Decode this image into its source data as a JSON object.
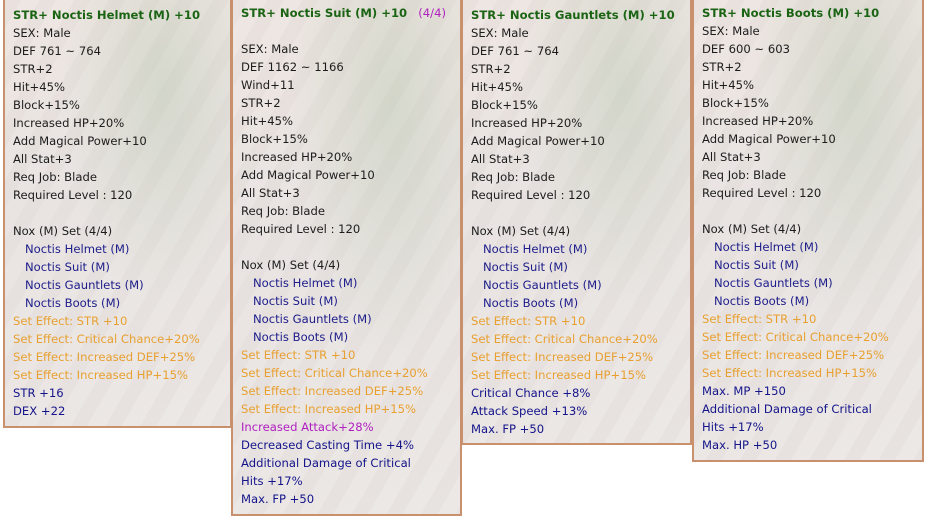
{
  "colors": {
    "title": "#1a6414",
    "normal": "#1c1c1c",
    "set_item": "#1c1c8a",
    "set_effect": "#e8a030",
    "bonus": "#14148a",
    "special": "#b020c0"
  },
  "panels": [
    {
      "title": "STR+ Noctis Helmet (M) +10",
      "lines": [
        {
          "text": "SEX: Male",
          "style": "normal"
        },
        {
          "text": "DEF 761 ~ 764",
          "style": "normal"
        },
        {
          "text": "STR+2",
          "style": "normal"
        },
        {
          "text": "Hit+45%",
          "style": "normal"
        },
        {
          "text": "Block+15%",
          "style": "normal"
        },
        {
          "text": "Increased HP+20%",
          "style": "normal"
        },
        {
          "text": "Add Magical Power+10",
          "style": "normal"
        },
        {
          "text": "All Stat+3",
          "style": "normal"
        },
        {
          "text": "Req Job: Blade",
          "style": "normal"
        },
        {
          "text": "Required Level : 120",
          "style": "normal"
        },
        {
          "text": "",
          "style": "normal"
        },
        {
          "text": "Nox (M) Set (4/4)",
          "style": "normal"
        },
        {
          "text": "Noctis Helmet (M)",
          "style": "set_item"
        },
        {
          "text": "Noctis Suit (M)",
          "style": "set_item"
        },
        {
          "text": "Noctis Gauntlets (M)",
          "style": "set_item"
        },
        {
          "text": "Noctis Boots (M)",
          "style": "set_item"
        },
        {
          "text": "Set Effect: STR +10",
          "style": "set_effect"
        },
        {
          "text": "Set Effect: Critical Chance+20%",
          "style": "set_effect"
        },
        {
          "text": "Set Effect: Increased DEF+25%",
          "style": "set_effect"
        },
        {
          "text": "Set Effect: Increased HP+15%",
          "style": "set_effect"
        },
        {
          "text": "STR +16",
          "style": "bonus"
        },
        {
          "text": "DEX +22",
          "style": "bonus"
        }
      ]
    },
    {
      "title": "STR+ Noctis Suit (M) +10",
      "title_extra": "(4/4)",
      "lines": [
        {
          "text": "",
          "style": "normal"
        },
        {
          "text": "SEX: Male",
          "style": "normal"
        },
        {
          "text": "DEF 1162 ~ 1166",
          "style": "normal"
        },
        {
          "text": "Wind+11",
          "style": "normal"
        },
        {
          "text": "STR+2",
          "style": "normal"
        },
        {
          "text": "Hit+45%",
          "style": "normal"
        },
        {
          "text": "Block+15%",
          "style": "normal"
        },
        {
          "text": "Increased HP+20%",
          "style": "normal"
        },
        {
          "text": "Add Magical Power+10",
          "style": "normal"
        },
        {
          "text": "All Stat+3",
          "style": "normal"
        },
        {
          "text": "Req Job: Blade",
          "style": "normal"
        },
        {
          "text": "Required Level : 120",
          "style": "normal"
        },
        {
          "text": "",
          "style": "normal"
        },
        {
          "text": "Nox (M) Set (4/4)",
          "style": "normal"
        },
        {
          "text": "Noctis Helmet (M)",
          "style": "set_item"
        },
        {
          "text": "Noctis Suit (M)",
          "style": "set_item"
        },
        {
          "text": "Noctis Gauntlets (M)",
          "style": "set_item"
        },
        {
          "text": "Noctis Boots (M)",
          "style": "set_item"
        },
        {
          "text": "Set Effect: STR +10",
          "style": "set_effect"
        },
        {
          "text": "Set Effect: Critical Chance+20%",
          "style": "set_effect"
        },
        {
          "text": "Set Effect: Increased DEF+25%",
          "style": "set_effect"
        },
        {
          "text": "Set Effect: Increased HP+15%",
          "style": "set_effect"
        },
        {
          "text": "Increased Attack+28%",
          "style": "special"
        },
        {
          "text": "Decreased Casting Time +4%",
          "style": "bonus"
        },
        {
          "text": "Additional Damage of Critical",
          "style": "bonus"
        },
        {
          "text": "Hits +17%",
          "style": "bonus"
        },
        {
          "text": "Max. FP +50",
          "style": "bonus"
        }
      ]
    },
    {
      "title": "STR+ Noctis Gauntlets (M) +10",
      "lines": [
        {
          "text": "SEX: Male",
          "style": "normal"
        },
        {
          "text": "DEF 761 ~ 764",
          "style": "normal"
        },
        {
          "text": "STR+2",
          "style": "normal"
        },
        {
          "text": "Hit+45%",
          "style": "normal"
        },
        {
          "text": "Block+15%",
          "style": "normal"
        },
        {
          "text": "Increased HP+20%",
          "style": "normal"
        },
        {
          "text": "Add Magical Power+10",
          "style": "normal"
        },
        {
          "text": "All Stat+3",
          "style": "normal"
        },
        {
          "text": "Req Job: Blade",
          "style": "normal"
        },
        {
          "text": "Required Level : 120",
          "style": "normal"
        },
        {
          "text": "",
          "style": "normal"
        },
        {
          "text": "Nox (M) Set (4/4)",
          "style": "normal"
        },
        {
          "text": "Noctis Helmet (M)",
          "style": "set_item"
        },
        {
          "text": "Noctis Suit (M)",
          "style": "set_item"
        },
        {
          "text": "Noctis Gauntlets (M)",
          "style": "set_item"
        },
        {
          "text": "Noctis Boots (M)",
          "style": "set_item"
        },
        {
          "text": "Set Effect: STR +10",
          "style": "set_effect"
        },
        {
          "text": "Set Effect: Critical Chance+20%",
          "style": "set_effect"
        },
        {
          "text": "Set Effect: Increased DEF+25%",
          "style": "set_effect"
        },
        {
          "text": "Set Effect: Increased HP+15%",
          "style": "set_effect"
        },
        {
          "text": "Critical Chance +8%",
          "style": "bonus"
        },
        {
          "text": "Attack Speed +13%",
          "style": "bonus"
        },
        {
          "text": "Max. FP +50",
          "style": "bonus"
        }
      ]
    },
    {
      "title": "STR+ Noctis Boots (M) +10",
      "lines": [
        {
          "text": "SEX: Male",
          "style": "normal"
        },
        {
          "text": "DEF 600 ~ 603",
          "style": "normal"
        },
        {
          "text": "STR+2",
          "style": "normal"
        },
        {
          "text": "Hit+45%",
          "style": "normal"
        },
        {
          "text": "Block+15%",
          "style": "normal"
        },
        {
          "text": "Increased HP+20%",
          "style": "normal"
        },
        {
          "text": "Add Magical Power+10",
          "style": "normal"
        },
        {
          "text": "All Stat+3",
          "style": "normal"
        },
        {
          "text": "Req Job: Blade",
          "style": "normal"
        },
        {
          "text": "Required Level : 120",
          "style": "normal"
        },
        {
          "text": "",
          "style": "normal"
        },
        {
          "text": "Nox (M) Set (4/4)",
          "style": "normal"
        },
        {
          "text": "Noctis Helmet (M)",
          "style": "set_item"
        },
        {
          "text": "Noctis Suit (M)",
          "style": "set_item"
        },
        {
          "text": "Noctis Gauntlets (M)",
          "style": "set_item"
        },
        {
          "text": "Noctis Boots (M)",
          "style": "set_item"
        },
        {
          "text": "Set Effect: STR +10",
          "style": "set_effect"
        },
        {
          "text": "Set Effect: Critical Chance+20%",
          "style": "set_effect"
        },
        {
          "text": "Set Effect: Increased DEF+25%",
          "style": "set_effect"
        },
        {
          "text": "Set Effect: Increased HP+15%",
          "style": "set_effect"
        },
        {
          "text": "Max. MP +150",
          "style": "bonus"
        },
        {
          "text": "Additional Damage of Critical",
          "style": "bonus"
        },
        {
          "text": "Hits +17%",
          "style": "bonus"
        },
        {
          "text": "Max. HP +50",
          "style": "bonus"
        }
      ]
    }
  ]
}
